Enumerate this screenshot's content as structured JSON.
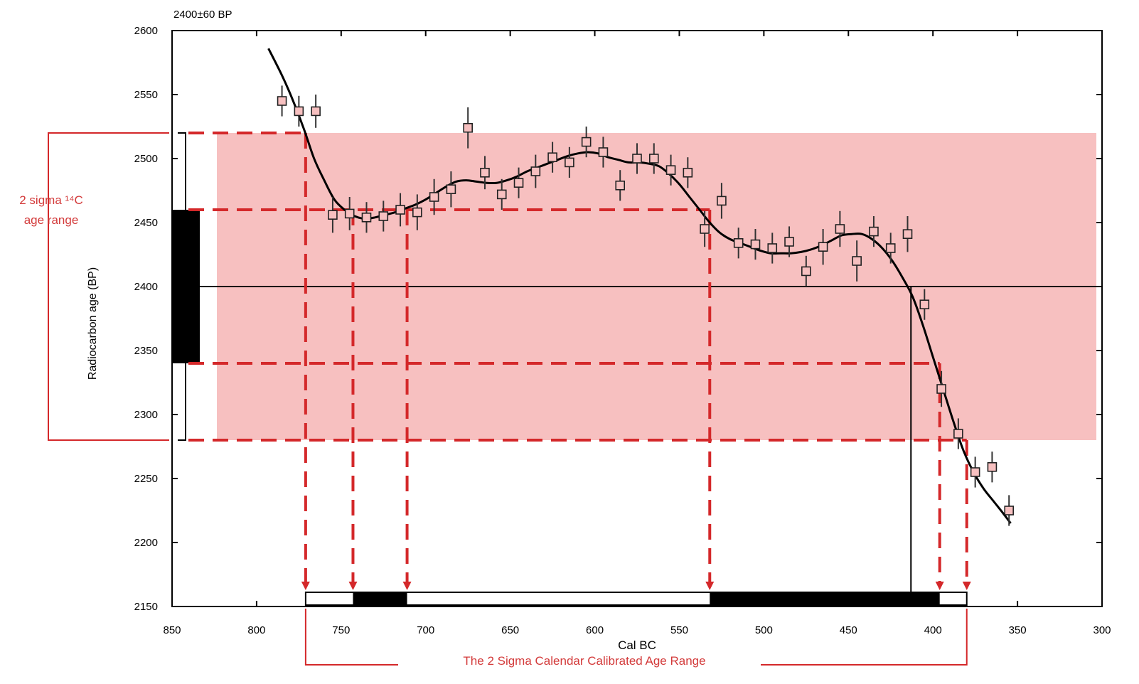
{
  "chart_data": {
    "type": "scatter",
    "title": "2400±60 BP",
    "xlabel": "Cal BC",
    "ylabel": "Radiocarbon age (BP)",
    "xlim": [
      850,
      300
    ],
    "ylim": [
      2150,
      2600
    ],
    "x_ticks": [
      850,
      800,
      750,
      700,
      650,
      600,
      550,
      500,
      450,
      400,
      350,
      300
    ],
    "y_ticks": [
      2600,
      2550,
      2500,
      2450,
      2400,
      2350,
      2300,
      2250,
      2200,
      2150
    ],
    "sample": {
      "age": 2400,
      "one_sigma": [
        2340,
        2460
      ],
      "two_sigma": [
        2280,
        2520
      ]
    },
    "calibration_curve": {
      "x": [
        793,
        785,
        779,
        772,
        766,
        760,
        754,
        748,
        742,
        736,
        730,
        724,
        718,
        712,
        706,
        700,
        694,
        688,
        682,
        676,
        670,
        664,
        658,
        652,
        646,
        640,
        634,
        628,
        622,
        616,
        610,
        604,
        598,
        592,
        586,
        580,
        574,
        568,
        562,
        556,
        550,
        544,
        538,
        532,
        526,
        520,
        514,
        508,
        502,
        496,
        490,
        484,
        478,
        472,
        466,
        460,
        454,
        448,
        442,
        436,
        430,
        424,
        418,
        412,
        406,
        400,
        394,
        388,
        382,
        376,
        370,
        364,
        358,
        354
      ],
      "y": [
        2586,
        2565,
        2547,
        2523,
        2500,
        2483,
        2468,
        2460,
        2455,
        2453,
        2454,
        2456,
        2458,
        2461,
        2464,
        2468,
        2473,
        2478,
        2482,
        2483,
        2482,
        2481,
        2481,
        2483,
        2486,
        2490,
        2493,
        2496,
        2499,
        2502,
        2504,
        2505,
        2504,
        2501,
        2499,
        2497,
        2497,
        2496,
        2494,
        2488,
        2480,
        2470,
        2460,
        2450,
        2442,
        2437,
        2434,
        2431,
        2428,
        2426,
        2426,
        2426,
        2427,
        2429,
        2432,
        2436,
        2440,
        2441,
        2441,
        2437,
        2430,
        2420,
        2407,
        2392,
        2370,
        2345,
        2320,
        2295,
        2272,
        2255,
        2242,
        2232,
        2222,
        2215
      ]
    },
    "series": [
      {
        "name": "",
        "x": [
          785,
          775,
          765,
          755,
          745,
          735,
          725,
          715,
          705,
          695,
          685,
          675,
          665,
          655,
          645,
          635,
          625,
          615,
          605,
          595,
          585,
          575,
          565,
          555,
          545,
          535,
          525,
          515,
          505,
          495,
          485,
          475,
          465,
          455,
          445,
          435,
          425,
          415,
          405,
          395,
          385,
          375,
          365,
          355
        ],
        "y": [
          2545,
          2537,
          2537,
          2456,
          2457,
          2454,
          2455,
          2460,
          2458,
          2470,
          2476,
          2524,
          2489,
          2472,
          2481,
          2490,
          2501,
          2497,
          2513,
          2505,
          2479,
          2500,
          2500,
          2491,
          2489,
          2445,
          2467,
          2434,
          2433,
          2430,
          2435,
          2412,
          2431,
          2445,
          2420,
          2443,
          2430,
          2441,
          2386,
          2320,
          2285,
          2255,
          2259,
          2225
        ],
        "err": [
          12,
          12,
          13,
          14,
          13,
          12,
          12,
          13,
          14,
          14,
          14,
          16,
          13,
          12,
          12,
          13,
          12,
          12,
          12,
          12,
          12,
          12,
          12,
          12,
          12,
          14,
          14,
          12,
          12,
          12,
          12,
          12,
          14,
          14,
          16,
          12,
          12,
          14,
          12,
          14,
          12,
          12,
          12,
          12
        ]
      }
    ],
    "range_projections": {
      "bp": [
        2520,
        2460,
        2340,
        2280
      ],
      "cal_bc": [
        771,
        743,
        711,
        532,
        396,
        380
      ],
      "central_cal_bc": 413
    },
    "calendar_range_bar": {
      "two_sigma": [
        771,
        380
      ],
      "one_sigma_blocks": [
        [
          743,
          711
        ],
        [
          532,
          396
        ]
      ]
    },
    "annotations": {
      "left_label": [
        "2 sigma ¹⁴C",
        "age   range"
      ],
      "bottom_label": "The 2 Sigma Calendar Calibrated Age Range"
    },
    "grid": false,
    "legend": "none"
  },
  "colors": {
    "band": "#f7c0c0",
    "red": "#d4282a",
    "label_red": "#d33a3a",
    "ink": "#000000"
  }
}
